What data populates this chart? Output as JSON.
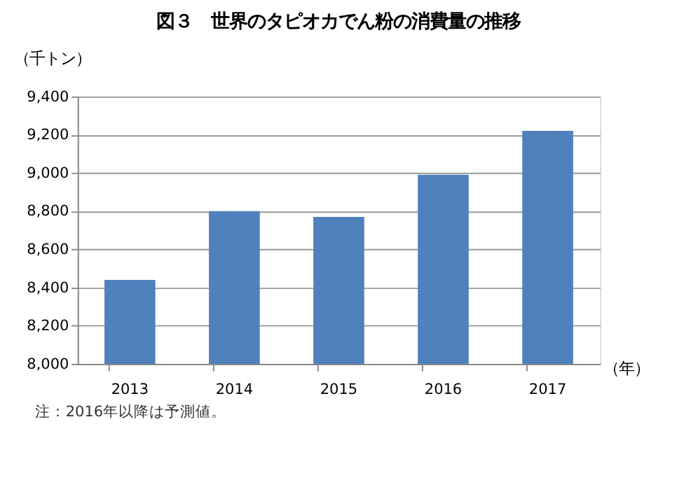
{
  "chart_data": {
    "type": "bar",
    "title": "図３　世界のタピオカでん粉の消費量の推移",
    "ylabel": "（千トン）",
    "xlabel": "（年）",
    "categories": [
      "2013",
      "2014",
      "2015",
      "2016",
      "2017"
    ],
    "values": [
      8440,
      8800,
      8770,
      8990,
      9220
    ],
    "color": "#4f81bd",
    "ylim": [
      8000,
      9400
    ],
    "yticks": [
      {
        "value": 8000,
        "label": "8,000"
      },
      {
        "value": 8200,
        "label": "8,200"
      },
      {
        "value": 8400,
        "label": "8,400"
      },
      {
        "value": 8600,
        "label": "8,600"
      },
      {
        "value": 8800,
        "label": "8,800"
      },
      {
        "value": 9000,
        "label": "9,000"
      },
      {
        "value": 9200,
        "label": "9,200"
      },
      {
        "value": 9400,
        "label": "9,400"
      }
    ],
    "grid": "y",
    "annotations": [
      "注：2016年以降は予測値。"
    ]
  }
}
